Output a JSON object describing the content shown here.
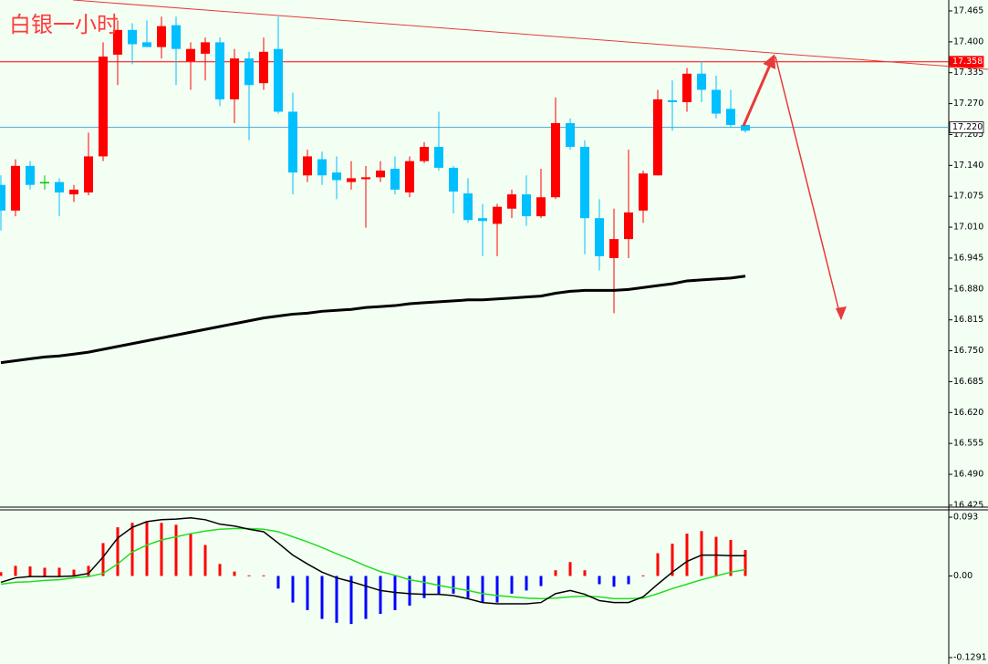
{
  "chart_data": [
    {
      "type": "candlestick",
      "title": "白银一小时",
      "ylim": [
        16.421,
        17.488
      ],
      "yticks": [
        17.465,
        {
          "value": 17.4,
          "label": "17.400"
        },
        17.335,
        {
          "value": 17.27,
          "label": "17.270"
        },
        17.205,
        {
          "value": 17.14,
          "label": "17.140"
        },
        17.075,
        {
          "value": 17.01,
          "label": "17.010"
        },
        16.945,
        {
          "value": 16.88,
          "label": "16.880"
        },
        16.815,
        {
          "value": 16.75,
          "label": "16.750"
        },
        16.685,
        {
          "value": 16.62,
          "label": "16.620"
        },
        16.555,
        {
          "value": 16.49,
          "label": "16.490"
        },
        16.425
      ],
      "up_color": "#ff0000",
      "down_color": "#00bfff",
      "doji_color": "#00c000",
      "open": [
        17.099,
        17.045,
        17.139,
        17.105,
        17.105,
        17.079,
        17.083,
        17.159,
        17.373,
        17.425,
        17.399,
        17.389,
        17.435,
        17.359,
        17.375,
        17.399,
        17.279,
        17.365,
        17.313,
        17.385,
        17.253,
        17.119,
        17.153,
        17.125,
        17.105,
        17.111,
        17.115,
        17.133,
        17.083,
        17.149,
        17.179,
        17.135,
        17.081,
        17.029,
        17.017,
        17.049,
        17.079,
        17.033,
        17.073,
        17.229,
        17.179,
        17.029,
        16.945,
        16.985,
        17.045,
        17.119,
        17.277,
        17.273,
        17.333,
        17.299,
        17.259,
        17.225
      ],
      "high": [
        17.119,
        17.153,
        17.149,
        17.119,
        17.113,
        17.099,
        17.209,
        17.399,
        17.445,
        17.439,
        17.445,
        17.453,
        17.453,
        17.399,
        17.409,
        17.409,
        17.385,
        17.379,
        17.409,
        17.453,
        17.293,
        17.173,
        17.169,
        17.159,
        17.149,
        17.139,
        17.149,
        17.159,
        17.159,
        17.189,
        17.253,
        17.139,
        17.113,
        17.059,
        17.059,
        17.089,
        17.119,
        17.133,
        17.283,
        17.239,
        17.193,
        17.069,
        17.049,
        17.173,
        17.129,
        17.299,
        17.319,
        17.345,
        17.359,
        17.329,
        17.299,
        17.229
      ],
      "low": [
        17.003,
        17.033,
        17.089,
        17.089,
        17.033,
        17.063,
        17.077,
        17.149,
        17.309,
        17.353,
        17.389,
        17.365,
        17.309,
        17.299,
        17.319,
        17.265,
        17.229,
        17.193,
        17.299,
        17.249,
        17.079,
        17.105,
        17.099,
        17.069,
        17.089,
        17.009,
        17.105,
        17.079,
        17.073,
        17.145,
        17.129,
        17.039,
        17.019,
        16.949,
        16.949,
        17.029,
        17.013,
        17.029,
        17.069,
        17.173,
        16.953,
        16.919,
        16.829,
        16.945,
        17.019,
        17.119,
        17.213,
        17.253,
        17.273,
        17.239,
        17.219,
        17.209
      ],
      "close": [
        17.045,
        17.139,
        17.099,
        17.105,
        17.083,
        17.089,
        17.159,
        17.369,
        17.425,
        17.395,
        17.389,
        17.433,
        17.385,
        17.385,
        17.399,
        17.279,
        17.365,
        17.309,
        17.379,
        17.253,
        17.125,
        17.159,
        17.119,
        17.109,
        17.113,
        17.115,
        17.129,
        17.089,
        17.149,
        17.179,
        17.135,
        17.085,
        17.025,
        17.023,
        17.053,
        17.079,
        17.033,
        17.073,
        17.229,
        17.179,
        17.029,
        16.949,
        16.985,
        17.041,
        17.123,
        17.279,
        17.273,
        17.333,
        17.299,
        17.249,
        17.225,
        17.213
      ],
      "ma": {
        "color": "#000000",
        "values": [
          16.725,
          16.729,
          16.733,
          16.737,
          16.739,
          16.743,
          16.747,
          16.753,
          16.759,
          16.765,
          16.771,
          16.777,
          16.783,
          16.789,
          16.795,
          16.801,
          16.807,
          16.813,
          16.819,
          16.823,
          16.827,
          16.829,
          16.833,
          16.835,
          16.837,
          16.841,
          16.843,
          16.845,
          16.849,
          16.851,
          16.853,
          16.855,
          16.857,
          16.857,
          16.859,
          16.861,
          16.863,
          16.865,
          16.871,
          16.875,
          16.877,
          16.877,
          16.877,
          16.879,
          16.883,
          16.887,
          16.891,
          16.897,
          16.899,
          16.901,
          16.903,
          16.907
        ]
      },
      "levels": [
        {
          "value": 17.358,
          "color": "#ff0000"
        },
        {
          "value": 17.22,
          "label": "17.220",
          "color": "#4aa3df"
        }
      ]
    },
    {
      "type": "macd",
      "ylim": [
        -0.1393,
        0.1046
      ],
      "yticks": [
        0.093,
        {
          "value": 0,
          "label": "0.00"
        },
        -0.1291
      ],
      "histogram": {
        "up_color": "#ff0000",
        "down_color": "#0000ff",
        "values": [
          0.006,
          0.016,
          0.015,
          0.013,
          0.013,
          0.01,
          0.016,
          0.052,
          0.077,
          0.084,
          0.086,
          0.084,
          0.081,
          0.067,
          0.049,
          0.019,
          0.007,
          0.001,
          0.001,
          -0.02,
          -0.042,
          -0.054,
          -0.068,
          -0.074,
          -0.076,
          -0.068,
          -0.06,
          -0.054,
          -0.047,
          -0.035,
          -0.029,
          -0.028,
          -0.035,
          -0.042,
          -0.042,
          -0.028,
          -0.023,
          -0.016,
          0.009,
          0.022,
          0.009,
          -0.013,
          -0.017,
          -0.013,
          0.001,
          0.036,
          0.051,
          0.067,
          0.071,
          0.062,
          0.057,
          0.041
        ]
      },
      "macd": {
        "color": "#000000",
        "values": [
          -0.01,
          -0.003,
          -0.001,
          -0.001,
          -0.001,
          0.0,
          0.004,
          0.03,
          0.06,
          0.077,
          0.086,
          0.089,
          0.09,
          0.092,
          0.089,
          0.082,
          0.079,
          0.074,
          0.07,
          0.052,
          0.033,
          0.019,
          0.006,
          -0.003,
          -0.009,
          -0.016,
          -0.023,
          -0.026,
          -0.028,
          -0.029,
          -0.029,
          -0.031,
          -0.036,
          -0.042,
          -0.044,
          -0.044,
          -0.044,
          -0.042,
          -0.028,
          -0.023,
          -0.029,
          -0.039,
          -0.042,
          -0.042,
          -0.033,
          -0.013,
          0.006,
          0.023,
          0.033,
          0.033,
          0.032,
          0.032
        ]
      },
      "signal": {
        "color": "#22dd22",
        "values": [
          -0.013,
          -0.01,
          -0.009,
          -0.007,
          -0.006,
          -0.003,
          -0.001,
          0.004,
          0.019,
          0.038,
          0.049,
          0.057,
          0.062,
          0.067,
          0.071,
          0.074,
          0.075,
          0.075,
          0.074,
          0.07,
          0.062,
          0.054,
          0.045,
          0.035,
          0.026,
          0.016,
          0.007,
          0.001,
          -0.006,
          -0.01,
          -0.015,
          -0.019,
          -0.023,
          -0.028,
          -0.031,
          -0.033,
          -0.035,
          -0.036,
          -0.035,
          -0.033,
          -0.032,
          -0.033,
          -0.036,
          -0.036,
          -0.035,
          -0.028,
          -0.02,
          -0.013,
          -0.006,
          0.0,
          0.006,
          0.01
        ]
      }
    }
  ]
}
